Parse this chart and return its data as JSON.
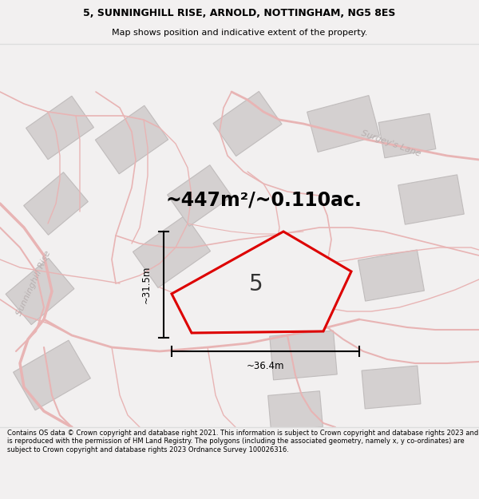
{
  "title_line1": "5, SUNNINGHILL RISE, ARNOLD, NOTTINGHAM, NG5 8ES",
  "title_line2": "Map shows position and indicative extent of the property.",
  "area_text": "~447m²/~0.110ac.",
  "property_number": "5",
  "dim_vertical": "~31.5m",
  "dim_horizontal": "~36.4m",
  "footer_text": "Contains OS data © Crown copyright and database right 2021. This information is subject to Crown copyright and database rights 2023 and is reproduced with the permission of HM Land Registry. The polygons (including the associated geometry, namely x, y co-ordinates) are subject to Crown copyright and database rights 2023 Ordnance Survey 100026316.",
  "bg_color": "#f2f0f0",
  "map_bg": "#f2f0f0",
  "road_color": "#e8b4b4",
  "building_color": "#d4d0d0",
  "building_edge": "#c0bcbc",
  "property_fill": "#f2f0f0",
  "property_edge": "#dd0000",
  "street_color": "#b8b0b0",
  "street_label_surgeys": "Surgey's Lane",
  "street_label_sunninghill": "Sunninghill Rise",
  "title_bg": "#ffffff",
  "footer_bg": "#ffffff",
  "sep_color": "#dddddd"
}
